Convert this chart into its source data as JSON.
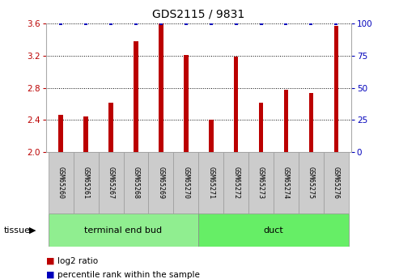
{
  "title": "GDS2115 / 9831",
  "samples": [
    "GSM65260",
    "GSM65261",
    "GSM65267",
    "GSM65268",
    "GSM65269",
    "GSM65270",
    "GSM65271",
    "GSM65272",
    "GSM65273",
    "GSM65274",
    "GSM65275",
    "GSM65276"
  ],
  "log2_values": [
    2.46,
    2.44,
    2.62,
    3.38,
    3.6,
    3.21,
    2.4,
    3.19,
    2.62,
    2.78,
    2.74,
    3.57
  ],
  "percentile_values": [
    100,
    100,
    100,
    100,
    100,
    100,
    100,
    100,
    100,
    100,
    100,
    100
  ],
  "bar_color": "#bb0000",
  "percentile_color": "#0000bb",
  "ylim_left": [
    2.0,
    3.6
  ],
  "ylim_right": [
    0,
    100
  ],
  "yticks_left": [
    2.0,
    2.4,
    2.8,
    3.2,
    3.6
  ],
  "yticks_right": [
    0,
    25,
    50,
    75,
    100
  ],
  "groups": [
    {
      "label": "terminal end bud",
      "start": 0,
      "end": 5,
      "color": "#90EE90"
    },
    {
      "label": "duct",
      "start": 6,
      "end": 11,
      "color": "#66EE66"
    }
  ],
  "tissue_label": "tissue",
  "legend_items": [
    {
      "label": "log2 ratio",
      "color": "#bb0000"
    },
    {
      "label": "percentile rank within the sample",
      "color": "#0000bb"
    }
  ],
  "background_color": "#ffffff",
  "grid_color": "#000000",
  "bar_width": 0.18,
  "label_box_color": "#cccccc",
  "label_box_edge": "#999999"
}
